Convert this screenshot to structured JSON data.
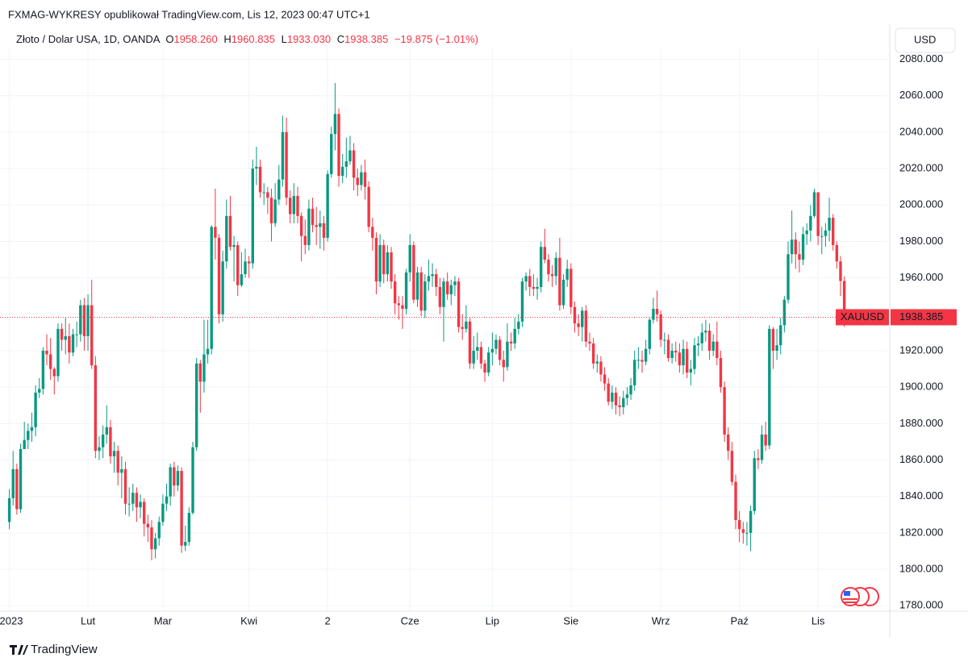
{
  "header": {
    "publisher": "FXMAG-WYKRESY opublikował TradingView.com, Lis 12, 2023 00:47 UTC+1",
    "currency": "USD",
    "brand": "TradingView"
  },
  "chart_data": {
    "type": "candlestick",
    "legend": {
      "symbol": "Złoto / Dolar USA, 1D, OANDA",
      "open_prefix": "O",
      "open": "1958.260",
      "high_prefix": "H",
      "high": "1960.835",
      "low_prefix": "L",
      "low": "1933.030",
      "close_prefix": "C",
      "close": "1938.385",
      "change": "−19.875 (−1.01%)"
    },
    "price_tag": {
      "ticker": "XAUUSD",
      "price": "1938.385"
    },
    "up_color": "#089981",
    "down_color": "#f23645",
    "grid": true,
    "ylim": [
      1777,
      2086
    ],
    "yticks": [
      {
        "value": 1780,
        "label": "1780.000"
      },
      {
        "value": 1800,
        "label": "1800.000"
      },
      {
        "value": 1820,
        "label": "1820.000"
      },
      {
        "value": 1840,
        "label": "1840.000"
      },
      {
        "value": 1860,
        "label": "1860.000"
      },
      {
        "value": 1880,
        "label": "1880.000"
      },
      {
        "value": 1900,
        "label": "1900.000"
      },
      {
        "value": 1920,
        "label": "1920.000"
      },
      {
        "value": 1940,
        "label": "1940.000"
      },
      {
        "value": 1960,
        "label": "1960.000"
      },
      {
        "value": 1980,
        "label": "1980.000"
      },
      {
        "value": 2000,
        "label": "2000.000"
      },
      {
        "value": 2020,
        "label": "2020.000"
      },
      {
        "value": 2040,
        "label": "2040.000"
      },
      {
        "value": 2060,
        "label": "2060.000"
      },
      {
        "value": 2080,
        "label": "2080.000"
      }
    ],
    "xlim": [
      -2.5,
      234.5
    ],
    "xticks": [
      {
        "value": 0,
        "label": "2023"
      },
      {
        "value": 21,
        "label": "Lut"
      },
      {
        "value": 41,
        "label": "Mar"
      },
      {
        "value": 64,
        "label": "Kwi"
      },
      {
        "value": 85,
        "label": "2"
      },
      {
        "value": 107,
        "label": "Cze"
      },
      {
        "value": 129,
        "label": "Lip"
      },
      {
        "value": 150,
        "label": "Sie"
      },
      {
        "value": 174,
        "label": "Wrz"
      },
      {
        "value": 195,
        "label": "Paź"
      },
      {
        "value": 216,
        "label": "Lis"
      }
    ],
    "open": [
      1826,
      1839,
      1855,
      1833,
      1866,
      1871,
      1876,
      1878,
      1897,
      1899,
      1920,
      1918,
      1910,
      1906,
      1932,
      1926,
      1928,
      1919,
      1929,
      1929,
      1945,
      1928,
      1945,
      1912,
      1865,
      1867,
      1874,
      1878,
      1862,
      1865,
      1853,
      1855,
      1836,
      1836,
      1842,
      1834,
      1837,
      1825,
      1823,
      1811,
      1817,
      1826,
      1836,
      1840,
      1856,
      1846,
      1854,
      1813,
      1815,
      1831,
      1867,
      1913,
      1903,
      1918,
      1921,
      1988,
      1982,
      1940,
      1969,
      1994,
      1977,
      1978,
      1956,
      1962,
      1969,
      1968,
      2020,
      2021,
      2007,
      2007,
      2004,
      1990,
      2003,
      2014,
      2040,
      2004,
      1995,
      2005,
      1994,
      1983,
      1978,
      1998,
      1989,
      1988,
      1990,
      1982,
      2017,
      2039,
      2050,
      2016,
      2021,
      2024,
      2030,
      2015,
      2011,
      2018,
      2010,
      1988,
      1982,
      1958,
      1978,
      1962,
      1974,
      1958,
      1946,
      1945,
      1943,
      1963,
      1978,
      1948,
      1963,
      1942,
      1958,
      1961,
      1962,
      1955,
      1944,
      1958,
      1951,
      1956,
      1958,
      1933,
      1932,
      1936,
      1913,
      1920,
      1922,
      1913,
      1908,
      1919,
      1921,
      1926,
      1915,
      1911,
      1925,
      1924,
      1932,
      1936,
      1958,
      1961,
      1955,
      1954,
      1955,
      1977,
      1970,
      1962,
      1961,
      1971,
      1945,
      1959,
      1965,
      1944,
      1935,
      1933,
      1942,
      1925,
      1924,
      1913,
      1914,
      1907,
      1902,
      1892,
      1897,
      1890,
      1889,
      1894,
      1896,
      1901,
      1915,
      1915,
      1914,
      1921,
      1937,
      1943,
      1940,
      1926,
      1926,
      1916,
      1920,
      1919,
      1912,
      1921,
      1908,
      1910,
      1923,
      1924,
      1930,
      1931,
      1920,
      1925,
      1916,
      1900,
      1874,
      1865,
      1848,
      1827,
      1822,
      1820,
      1820,
      1832,
      1861,
      1860,
      1874,
      1868,
      1932,
      1920,
      1923,
      1934,
      1948,
      1973,
      1981,
      1973,
      1970,
      1984,
      1986,
      1994,
      2007,
      1983,
      1983,
      1986,
      1993,
      1978,
      1969,
      1958.26
    ],
    "high": [
      1844,
      1865,
      1858,
      1869,
      1881,
      1880,
      1886,
      1901,
      1905,
      1922,
      1929,
      1927,
      1911,
      1935,
      1935,
      1938,
      1935,
      1932,
      1936,
      1948,
      1949,
      1951,
      1959,
      1917,
      1873,
      1879,
      1890,
      1882,
      1870,
      1868,
      1862,
      1859,
      1845,
      1847,
      1845,
      1841,
      1839,
      1830,
      1827,
      1820,
      1829,
      1841,
      1847,
      1858,
      1859,
      1857,
      1856,
      1824,
      1834,
      1870,
      1916,
      1915,
      1937,
      1937,
      1989,
      2009,
      1984,
      1975,
      2003,
      2005,
      1983,
      1980,
      1974,
      1976,
      1972,
      2025,
      2032,
      2025,
      2012,
      2010,
      2009,
      2012,
      2022,
      2049,
      2048,
      2008,
      2012,
      2010,
      1996,
      1992,
      2003,
      2004,
      1999,
      1997,
      1994,
      2019,
      2043,
      2067,
      2053,
      2028,
      2037,
      2038,
      2034,
      2020,
      2022,
      2025,
      2013,
      1993,
      1985,
      1984,
      1981,
      1978,
      1977,
      1962,
      1950,
      1950,
      1965,
      1984,
      1980,
      1966,
      1966,
      1962,
      1970,
      1968,
      1965,
      1960,
      1960,
      1963,
      1959,
      1961,
      1960,
      1940,
      1945,
      1938,
      1928,
      1930,
      1925,
      1915,
      1922,
      1930,
      1929,
      1928,
      1920,
      1935,
      1930,
      1938,
      1940,
      1960,
      1963,
      1965,
      1962,
      1960,
      1980,
      1987,
      1973,
      1967,
      1974,
      1982,
      1962,
      1970,
      1968,
      1947,
      1940,
      1944,
      1945,
      1930,
      1927,
      1918,
      1917,
      1911,
      1905,
      1901,
      1900,
      1895,
      1898,
      1900,
      1905,
      1920,
      1922,
      1920,
      1926,
      1938,
      1949,
      1953,
      1942,
      1930,
      1929,
      1924,
      1925,
      1924,
      1926,
      1925,
      1915,
      1927,
      1928,
      1935,
      1937,
      1935,
      1929,
      1936,
      1920,
      1903,
      1878,
      1870,
      1852,
      1832,
      1826,
      1826,
      1835,
      1865,
      1866,
      1879,
      1881,
      1934,
      1933,
      1932,
      1938,
      1950,
      1980,
      1997,
      1985,
      1980,
      1988,
      1990,
      2000,
      2009,
      2007,
      1988,
      1990,
      2004,
      1995,
      1980,
      1972,
      1960.835
    ],
    "low": [
      1822,
      1835,
      1830,
      1831,
      1866,
      1866,
      1870,
      1873,
      1894,
      1896,
      1912,
      1904,
      1896,
      1903,
      1920,
      1918,
      1913,
      1917,
      1922,
      1925,
      1920,
      1920,
      1910,
      1861,
      1860,
      1861,
      1869,
      1858,
      1853,
      1846,
      1839,
      1830,
      1829,
      1832,
      1826,
      1828,
      1818,
      1815,
      1805,
      1806,
      1813,
      1824,
      1832,
      1835,
      1840,
      1843,
      1809,
      1810,
      1813,
      1830,
      1865,
      1886,
      1897,
      1913,
      1918,
      1970,
      1935,
      1936,
      1965,
      1975,
      1958,
      1950,
      1955,
      1960,
      1960,
      1965,
      2011,
      2004,
      2000,
      1995,
      1980,
      1988,
      2000,
      2010,
      2000,
      1990,
      1990,
      1990,
      1969,
      1973,
      1975,
      1985,
      1978,
      1976,
      1975,
      1980,
      2015,
      2030,
      2010,
      2012,
      2015,
      2022,
      2008,
      2005,
      2008,
      2003,
      1985,
      1975,
      1951,
      1955,
      1957,
      1958,
      1954,
      1940,
      1937,
      1932,
      1940,
      1958,
      1946,
      1944,
      1939,
      1938,
      1953,
      1955,
      1950,
      1940,
      1925,
      1948,
      1945,
      1950,
      1930,
      1926,
      1930,
      1910,
      1910,
      1915,
      1910,
      1903,
      1906,
      1912,
      1918,
      1912,
      1903,
      1909,
      1920,
      1921,
      1929,
      1933,
      1953,
      1950,
      1950,
      1948,
      1952,
      1968,
      1958,
      1955,
      1956,
      1942,
      1943,
      1955,
      1940,
      1930,
      1928,
      1925,
      1922,
      1920,
      1910,
      1908,
      1903,
      1898,
      1890,
      1888,
      1885,
      1884,
      1885,
      1890,
      1893,
      1898,
      1910,
      1908,
      1912,
      1918,
      1935,
      1936,
      1922,
      1918,
      1914,
      1913,
      1914,
      1908,
      1907,
      1905,
      1901,
      1907,
      1917,
      1920,
      1925,
      1915,
      1917,
      1912,
      1897,
      1870,
      1860,
      1846,
      1822,
      1815,
      1814,
      1813,
      1810,
      1830,
      1855,
      1858,
      1865,
      1866,
      1910,
      1915,
      1918,
      1930,
      1946,
      1968,
      1965,
      1963,
      1967,
      1978,
      1980,
      1993,
      1978,
      1973,
      1977,
      1980,
      1975,
      1965,
      1950,
      1933.03
    ],
    "close": [
      1839,
      1855,
      1833,
      1866,
      1871,
      1876,
      1878,
      1897,
      1899,
      1920,
      1918,
      1910,
      1906,
      1932,
      1926,
      1928,
      1919,
      1929,
      1929,
      1945,
      1928,
      1945,
      1912,
      1865,
      1867,
      1874,
      1878,
      1862,
      1865,
      1853,
      1855,
      1836,
      1836,
      1842,
      1834,
      1837,
      1825,
      1823,
      1811,
      1817,
      1826,
      1836,
      1840,
      1856,
      1846,
      1854,
      1813,
      1815,
      1831,
      1867,
      1913,
      1903,
      1918,
      1921,
      1988,
      1982,
      1940,
      1969,
      1994,
      1977,
      1978,
      1956,
      1962,
      1969,
      1968,
      2020,
      2021,
      2007,
      2007,
      2004,
      1990,
      2003,
      2014,
      2040,
      2004,
      1995,
      2005,
      1994,
      1983,
      1978,
      1998,
      1989,
      1988,
      1990,
      1982,
      2017,
      2039,
      2050,
      2016,
      2021,
      2024,
      2030,
      2015,
      2011,
      2018,
      2010,
      1988,
      1982,
      1958,
      1978,
      1962,
      1974,
      1958,
      1946,
      1945,
      1943,
      1963,
      1978,
      1948,
      1963,
      1942,
      1958,
      1961,
      1962,
      1955,
      1944,
      1958,
      1951,
      1956,
      1958,
      1933,
      1932,
      1936,
      1913,
      1920,
      1922,
      1913,
      1908,
      1919,
      1921,
      1926,
      1915,
      1911,
      1925,
      1924,
      1932,
      1936,
      1958,
      1961,
      1955,
      1954,
      1955,
      1977,
      1970,
      1962,
      1961,
      1971,
      1945,
      1959,
      1965,
      1944,
      1935,
      1933,
      1942,
      1925,
      1924,
      1913,
      1914,
      1907,
      1902,
      1892,
      1897,
      1890,
      1889,
      1894,
      1896,
      1901,
      1915,
      1915,
      1914,
      1921,
      1937,
      1943,
      1940,
      1926,
      1926,
      1916,
      1920,
      1919,
      1912,
      1921,
      1908,
      1910,
      1923,
      1924,
      1930,
      1931,
      1920,
      1925,
      1916,
      1900,
      1874,
      1865,
      1848,
      1827,
      1822,
      1820,
      1820,
      1832,
      1861,
      1860,
      1874,
      1868,
      1932,
      1920,
      1923,
      1934,
      1948,
      1973,
      1981,
      1973,
      1970,
      1984,
      1986,
      1994,
      2007,
      1983,
      1983,
      1986,
      1993,
      1978,
      1969,
      1958.26,
      1938.385
    ]
  }
}
